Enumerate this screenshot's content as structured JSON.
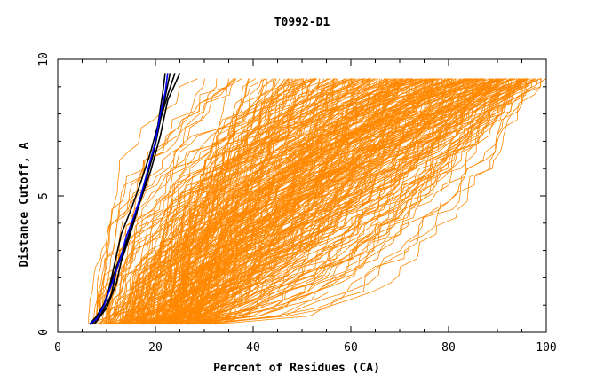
{
  "chart_data": {
    "type": "line",
    "title": "T0992-D1",
    "xlabel": "Percent of Residues (CA)",
    "ylabel": "Distance Cutoff, A",
    "xlim": [
      0,
      100
    ],
    "ylim": [
      0,
      10
    ],
    "xticks": [
      0,
      20,
      40,
      60,
      80,
      100
    ],
    "yticks": [
      0,
      5,
      10
    ],
    "grid": false,
    "legend": "none",
    "colors": {
      "orange": "#ff8800",
      "black": "#000000",
      "blue": "#0000ff",
      "axis": "#000000"
    },
    "series": [
      {
        "color": "black",
        "points": [
          [
            6.5,
            0.3
          ],
          [
            8,
            0.6
          ],
          [
            10,
            1.2
          ],
          [
            11,
            2.0
          ],
          [
            12,
            2.8
          ],
          [
            13,
            3.6
          ],
          [
            15,
            4.5
          ],
          [
            17,
            5.5
          ],
          [
            19,
            6.6
          ],
          [
            20.5,
            7.6
          ],
          [
            21.5,
            8.8
          ],
          [
            22,
            9.5
          ]
        ]
      },
      {
        "color": "black",
        "points": [
          [
            7,
            0.3
          ],
          [
            9,
            0.7
          ],
          [
            11,
            1.4
          ],
          [
            12,
            2.3
          ],
          [
            13.5,
            3.0
          ],
          [
            15.5,
            4.0
          ],
          [
            17.5,
            5.2
          ],
          [
            19.5,
            6.5
          ],
          [
            21,
            7.8
          ],
          [
            22.5,
            8.7
          ],
          [
            24,
            9.5
          ]
        ]
      },
      {
        "color": "black",
        "points": [
          [
            6.8,
            0.3
          ],
          [
            9,
            0.8
          ],
          [
            10.5,
            1.6
          ],
          [
            12,
            2.4
          ],
          [
            14,
            3.3
          ],
          [
            16,
            4.4
          ],
          [
            18,
            5.6
          ],
          [
            20,
            6.9
          ],
          [
            21.5,
            8.2
          ],
          [
            23,
            9.5
          ]
        ]
      },
      {
        "color": "black",
        "points": [
          [
            7.5,
            0.3
          ],
          [
            10,
            0.9
          ],
          [
            12,
            1.8
          ],
          [
            13,
            2.6
          ],
          [
            14.5,
            3.4
          ],
          [
            16.5,
            4.6
          ],
          [
            19,
            5.9
          ],
          [
            21,
            7.2
          ],
          [
            22.5,
            8.5
          ],
          [
            25,
            9.5
          ]
        ]
      },
      {
        "color": "blue",
        "points": [
          [
            6.5,
            0.3
          ],
          [
            8,
            0.5
          ],
          [
            9.5,
            1.0
          ],
          [
            10.5,
            1.5
          ],
          [
            11.5,
            2.0
          ],
          [
            13,
            2.8
          ],
          [
            14,
            3.5
          ],
          [
            15.5,
            4.2
          ],
          [
            17,
            5.0
          ],
          [
            18.5,
            6.0
          ],
          [
            20,
            7.0
          ],
          [
            21,
            8.0
          ],
          [
            22,
            8.8
          ],
          [
            22.5,
            9.5
          ]
        ]
      }
    ]
  }
}
